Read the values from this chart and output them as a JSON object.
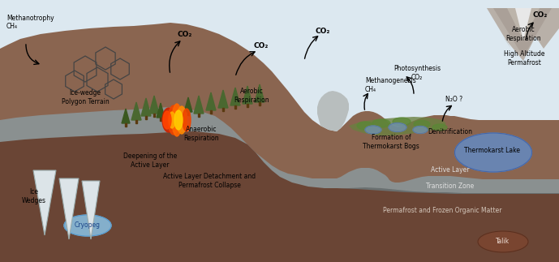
{
  "sky_color": "#dce8f0",
  "brown_top": "#8a6550",
  "brown_mid": "#7a5a45",
  "gray_layer": "#8a9090",
  "dark_brown": "#6a4535",
  "light_gray": "#b0b8b8",
  "ice_white": "#dce4e8",
  "lake_blue": "#7090bb",
  "cryopeg_blue": "#90bbcc",
  "talik_brown": "#7a4530",
  "bog_green": "#708850",
  "bog_pool": "#7090a0",
  "fire_red": "#ee4400",
  "fire_orange": "#ff8800",
  "fire_yellow": "#ffcc00",
  "tree_green": "#3a5a25",
  "mountain_gray": "#9a9090",
  "labels": {
    "methanotrophy": "Methanotrophy\nCH₄",
    "ice_wedge_polygon": "Ice-wedge\nPolygon Terrain",
    "ice_wedges": "Ice\nWedges",
    "deepening": "Deepening of the\nActive Layer",
    "anaerobic": "Anaerobic\nRespiration",
    "aerobic_left": "Aerobic\nRespiration",
    "active_layer_det": "Active Layer Detachment and\nPermafrost Collapse",
    "methanogenesis": "Methanogenesis\nCH₄",
    "formation_bogs": "Formation of\nThermokarst Bogs",
    "photosynthesis": "Photosynthesis\nCO₂",
    "denitrification": "Denitrification",
    "n2o": "N₂O ?",
    "thermokarst_lake": "Thermokarst Lake",
    "aerobic_right": "Aerobic\nRespiration",
    "high_altitude": "High Altitude\nPermafrost",
    "active_layer": "Active Layer",
    "transition_zone": "Transition Zone",
    "permafrost_frozen": "Permafrost and Frozen Organic Matter",
    "cryopeg": "Cryopeg",
    "talik": "Talik",
    "co2": "CO₂"
  }
}
